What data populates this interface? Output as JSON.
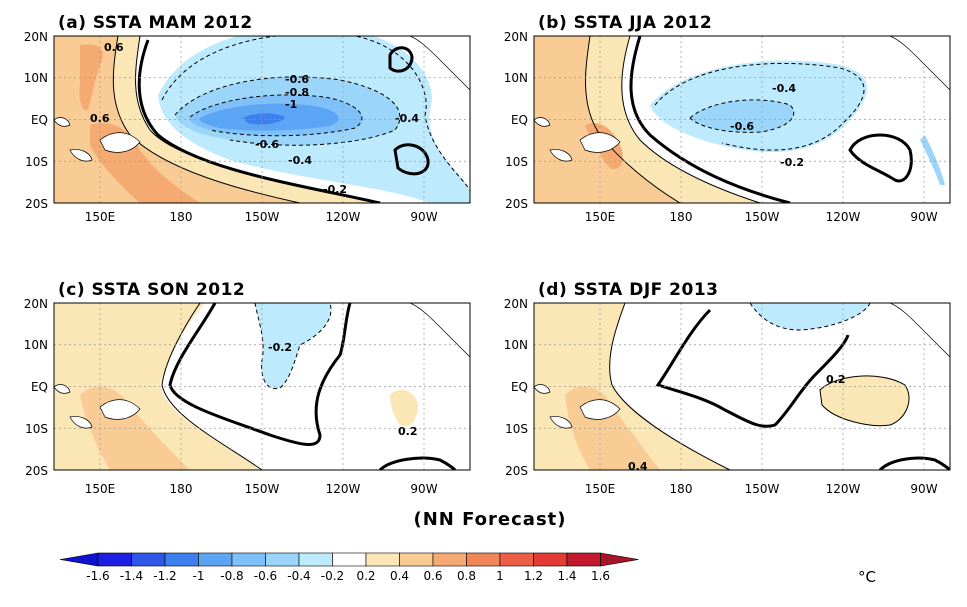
{
  "panels": [
    {
      "title": "(a) SSTA  MAM 2012",
      "contour_labels": [
        "0.6",
        "0.6",
        "-0.6",
        "-0.8",
        "-1",
        "-0.4",
        "-0.6",
        "-0.4",
        "-0.2"
      ]
    },
    {
      "title": "(b) SSTA  JJA 2012",
      "contour_labels": [
        "-0.4",
        "-0.6",
        "-0.2"
      ]
    },
    {
      "title": "(c) SSTA  SON 2012",
      "contour_labels": [
        "-0.2",
        "0.2"
      ]
    },
    {
      "title": "(d) SSTA  DJF 2013",
      "contour_labels": [
        "0.2",
        "0.4"
      ]
    }
  ],
  "axes": {
    "lat_labels": [
      "20N",
      "10N",
      "EQ",
      "10S",
      "20S"
    ],
    "lon_labels": [
      "150E",
      "180",
      "150W",
      "120W",
      "90W"
    ]
  },
  "footer": "(NN Forecast)",
  "colorbar": {
    "labels": [
      "-1.6",
      "-1.4",
      "-1.2",
      "-1",
      "-0.8",
      "-0.6",
      "-0.4",
      "-0.2",
      "0.2",
      "0.4",
      "0.6",
      "0.8",
      "1",
      "1.2",
      "1.4",
      "1.6"
    ],
    "unit": "°C",
    "colors": [
      "#1e1ee0",
      "#2f56e6",
      "#3e7ff0",
      "#5ca5f5",
      "#7fc0f8",
      "#9bd5f9",
      "#bdeafc",
      "#ffffff",
      "#fbe7b5",
      "#f8cc94",
      "#f5aa72",
      "#f08558",
      "#ec5e45",
      "#e23c36",
      "#c3192c"
    ]
  }
}
